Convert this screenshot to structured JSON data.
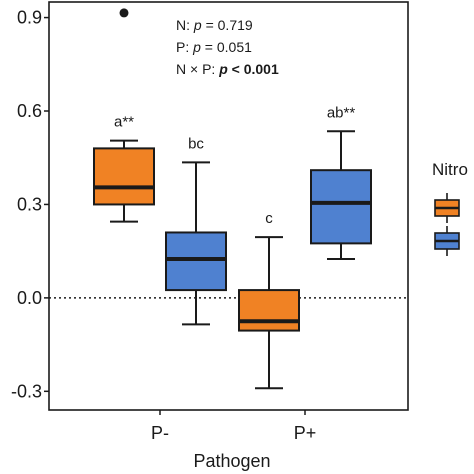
{
  "chart_data": {
    "type": "boxplot",
    "xlabel": "Pathogen",
    "ylabel": "",
    "ylim": [
      -0.36,
      0.95
    ],
    "yticks": [
      {
        "value": 0.9,
        "label": "0.9"
      },
      {
        "value": 0.6,
        "label": "0.6"
      },
      {
        "value": 0.3,
        "label": "0.3"
      },
      {
        "value": 0.0,
        "label": "0.0"
      },
      {
        "value": -0.3,
        "label": "-0.3"
      }
    ],
    "categories": [
      "P-",
      "P+"
    ],
    "reference_line": 0.0,
    "grid": false,
    "legend": {
      "title": "Nitro",
      "position": "right",
      "entries": [
        {
          "color": "#F08224"
        },
        {
          "color": "#4F81D0"
        }
      ]
    },
    "series": [
      {
        "color": "#F08224",
        "boxes": [
          {
            "category": "P-",
            "min": 0.245,
            "q1": 0.3,
            "median": 0.355,
            "q3": 0.48,
            "max": 0.505,
            "outliers": [
              0.915
            ],
            "label": "a**"
          },
          {
            "category": "P+",
            "min": -0.29,
            "q1": -0.105,
            "median": -0.075,
            "q3": 0.025,
            "max": 0.195,
            "outliers": [],
            "label": "c"
          }
        ]
      },
      {
        "color": "#4F81D0",
        "boxes": [
          {
            "category": "P-",
            "min": -0.085,
            "q1": 0.025,
            "median": 0.125,
            "q3": 0.21,
            "max": 0.435,
            "outliers": [],
            "label": "bc"
          },
          {
            "category": "P+",
            "min": 0.125,
            "q1": 0.175,
            "median": 0.305,
            "q3": 0.41,
            "max": 0.535,
            "outliers": [],
            "label": "ab**"
          }
        ]
      }
    ],
    "stats_text": {
      "line1_prefix": "N: ",
      "line1_p": "p",
      "line1_value": " = 0.719",
      "line2_prefix": "P: ",
      "line2_p": "p",
      "line2_value": " = 0.051",
      "line3_prefix": "N × P: ",
      "line3_p": "p",
      "line3_value": " < 0.001"
    }
  }
}
